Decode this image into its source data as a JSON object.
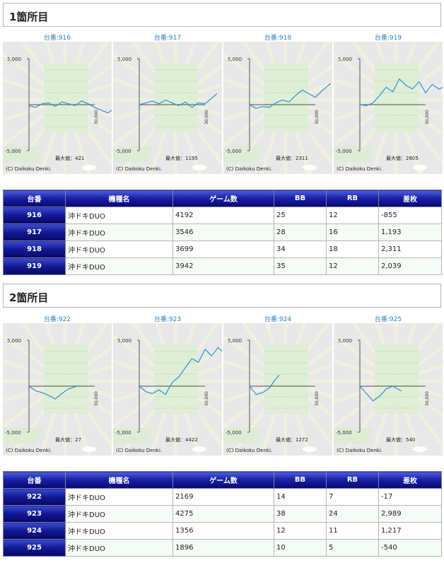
{
  "sections": [
    {
      "title": "1箇所目",
      "charts": [
        {
          "caption": "台番:916",
          "ymax_label": "5,000",
          "ymin_label": "-5,000",
          "x_label": "30,000",
          "max_label": "最大値：421",
          "copyright": "(C) Daikoku Denki."
        },
        {
          "caption": "台番:917",
          "ymax_label": "5,000",
          "ymin_label": "-5,000",
          "x_label": "30,000",
          "max_label": "最大値：1195",
          "copyright": "(C) Daikoku Denki."
        },
        {
          "caption": "台番:918",
          "ymax_label": "5,000",
          "ymin_label": "-5,000",
          "x_label": "30,000",
          "max_label": "最大値：2311",
          "copyright": "(C) Daikoku Denki."
        },
        {
          "caption": "台番:919",
          "ymax_label": "5,000",
          "ymin_label": "-5,000",
          "x_label": "30,000",
          "max_label": "最大値：2805",
          "copyright": "(C) Daikoku Denki."
        }
      ],
      "table": {
        "headers": [
          "台番",
          "機種名",
          "ゲーム数",
          "BB",
          "RB",
          "差枚"
        ],
        "rows": [
          [
            "916",
            "沖ドキDUO",
            "4192",
            "25",
            "12",
            "-855"
          ],
          [
            "917",
            "沖ドキDUO",
            "3546",
            "28",
            "16",
            "1,193"
          ],
          [
            "918",
            "沖ドキDUO",
            "3699",
            "34",
            "18",
            "2,311"
          ],
          [
            "919",
            "沖ドキDUO",
            "3942",
            "35",
            "12",
            "2,039"
          ]
        ]
      }
    },
    {
      "title": "2箇所目",
      "charts": [
        {
          "caption": "台番:922",
          "ymax_label": "5,000",
          "ymin_label": "-5,000",
          "x_label": "30,000",
          "max_label": "最大値：27",
          "copyright": "(C) Daikoku Denki."
        },
        {
          "caption": "台番:923",
          "ymax_label": "5,000",
          "ymin_label": "-5,000",
          "x_label": "30,000",
          "max_label": "最大値：4422",
          "copyright": "(C) Daikoku Denki."
        },
        {
          "caption": "台番:924",
          "ymax_label": "5,000",
          "ymin_label": "-5,000",
          "x_label": "30,000",
          "max_label": "最大値：1272",
          "copyright": "(C) Daikoku Denki."
        },
        {
          "caption": "台番:925",
          "ymax_label": "5,000",
          "ymin_label": "-5,000",
          "x_label": "30,000",
          "max_label": "最大値：540",
          "copyright": "(C) Daikoku Denki."
        }
      ],
      "table": {
        "headers": [
          "台番",
          "機種名",
          "ゲーム数",
          "BB",
          "RB",
          "差枚"
        ],
        "rows": [
          [
            "922",
            "沖ドキDUO",
            "2169",
            "14",
            "7",
            "-17"
          ],
          [
            "923",
            "沖ドキDUO",
            "4275",
            "38",
            "24",
            "2,989"
          ],
          [
            "924",
            "沖ドキDUO",
            "1356",
            "12",
            "11",
            "1,217"
          ],
          [
            "925",
            "沖ドキDUO",
            "1896",
            "10",
            "5",
            "-540"
          ]
        ]
      }
    }
  ],
  "colors": {
    "line": "#2f8fd6",
    "negative": "#d00000",
    "header_blue": "#10188f",
    "chart_bg": "#e6e6e6"
  },
  "chart_data": [
    {
      "type": "line",
      "machine": "916",
      "ylim": [
        -5000,
        5000
      ],
      "xlim": [
        0,
        30000
      ],
      "x": [
        0,
        300,
        600,
        900,
        1200,
        1500,
        1800,
        2100,
        2400,
        2700,
        3000,
        3300,
        3600,
        3900,
        4192
      ],
      "y": [
        -100,
        -300,
        100,
        200,
        -200,
        300,
        100,
        -100,
        400,
        100,
        -300,
        -600,
        -900,
        -400,
        -855
      ]
    },
    {
      "type": "line",
      "machine": "917",
      "ylim": [
        -5000,
        5000
      ],
      "xlim": [
        0,
        30000
      ],
      "x": [
        0,
        300,
        600,
        900,
        1200,
        1500,
        1800,
        2100,
        2400,
        2700,
        3000,
        3300,
        3546
      ],
      "y": [
        0,
        200,
        400,
        100,
        500,
        200,
        -100,
        300,
        -300,
        200,
        100,
        700,
        1193
      ]
    },
    {
      "type": "line",
      "machine": "918",
      "ylim": [
        -5000,
        5000
      ],
      "xlim": [
        0,
        30000
      ],
      "x": [
        0,
        300,
        600,
        900,
        1200,
        1500,
        1800,
        2100,
        2400,
        2700,
        3000,
        3300,
        3699
      ],
      "y": [
        0,
        -400,
        -200,
        -300,
        200,
        500,
        300,
        1000,
        1600,
        1200,
        800,
        1500,
        2311
      ]
    },
    {
      "type": "line",
      "machine": "919",
      "ylim": [
        -5000,
        5000
      ],
      "xlim": [
        0,
        30000
      ],
      "x": [
        0,
        300,
        600,
        900,
        1200,
        1500,
        1800,
        2100,
        2400,
        2700,
        3000,
        3300,
        3600,
        3942
      ],
      "y": [
        0,
        -100,
        200,
        1000,
        1900,
        1400,
        2800,
        2100,
        1700,
        2500,
        1300,
        2200,
        1700,
        2039
      ]
    },
    {
      "type": "line",
      "machine": "922",
      "ylim": [
        -5000,
        5000
      ],
      "xlim": [
        0,
        30000
      ],
      "x": [
        0,
        300,
        600,
        900,
        1200,
        1500,
        1800,
        2169
      ],
      "y": [
        0,
        -500,
        -700,
        -1000,
        -1400,
        -800,
        -300,
        -17
      ]
    },
    {
      "type": "line",
      "machine": "923",
      "ylim": [
        -5000,
        5000
      ],
      "xlim": [
        0,
        30000
      ],
      "x": [
        0,
        300,
        600,
        900,
        1200,
        1500,
        1800,
        2100,
        2400,
        2700,
        3000,
        3300,
        3600,
        3900,
        4275
      ],
      "y": [
        0,
        -600,
        -800,
        -400,
        -900,
        400,
        1000,
        2000,
        3000,
        2600,
        4000,
        3300,
        4200,
        3500,
        2989
      ]
    },
    {
      "type": "line",
      "machine": "924",
      "ylim": [
        -5000,
        5000
      ],
      "xlim": [
        0,
        30000
      ],
      "x": [
        0,
        300,
        600,
        900,
        1200,
        1356
      ],
      "y": [
        0,
        -900,
        -700,
        -200,
        800,
        1217
      ]
    },
    {
      "type": "line",
      "machine": "925",
      "ylim": [
        -5000,
        5000
      ],
      "xlim": [
        0,
        30000
      ],
      "x": [
        0,
        300,
        600,
        900,
        1200,
        1500,
        1896
      ],
      "y": [
        0,
        -800,
        -1600,
        -1100,
        -300,
        0,
        -540
      ]
    }
  ]
}
